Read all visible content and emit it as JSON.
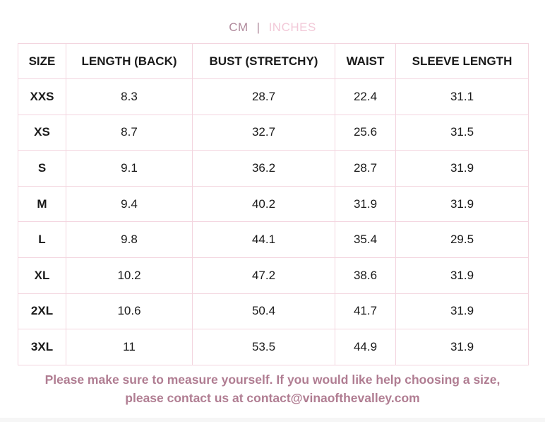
{
  "units": {
    "cm": "CM",
    "separator": "|",
    "inches": "INCHES"
  },
  "table": {
    "headers": [
      "SIZE",
      "LENGTH (BACK)",
      "BUST (STRETCHY)",
      "WAIST",
      "SLEEVE LENGTH"
    ],
    "rows": [
      [
        "XXS",
        "8.3",
        "28.7",
        "22.4",
        "31.1"
      ],
      [
        "XS",
        "8.7",
        "32.7",
        "25.6",
        "31.5"
      ],
      [
        "S",
        "9.1",
        "36.2",
        "28.7",
        "31.9"
      ],
      [
        "M",
        "9.4",
        "40.2",
        "31.9",
        "31.9"
      ],
      [
        "L",
        "9.8",
        "44.1",
        "35.4",
        "29.5"
      ],
      [
        "XL",
        "10.2",
        "47.2",
        "38.6",
        "31.9"
      ],
      [
        "2XL",
        "10.6",
        "50.4",
        "41.7",
        "31.9"
      ],
      [
        "3XL",
        "11",
        "53.5",
        "44.9",
        "31.9"
      ]
    ]
  },
  "note": {
    "line1": "Please make sure to measure yourself. If you would like help choosing a size,",
    "line2": "please contact us at contact@vinaofthevalley.com"
  },
  "colors": {
    "border": "#f3d5df",
    "note": "#b07d92",
    "cm_active": "#b08a9c",
    "inches_inactive": "#f2c9d8"
  }
}
